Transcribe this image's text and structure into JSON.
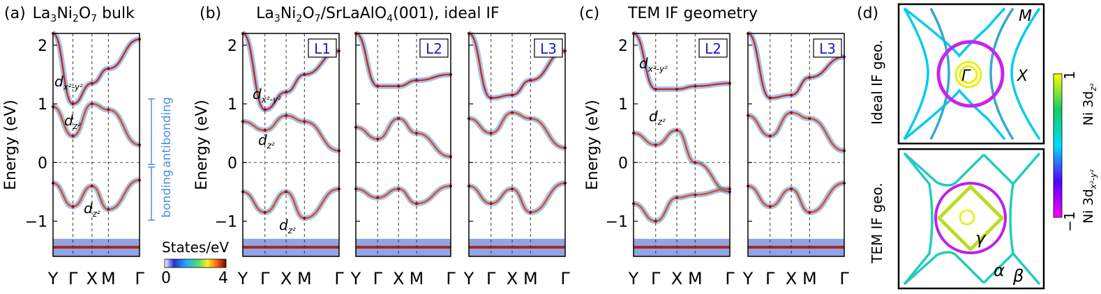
{
  "colors": {
    "blue_label": "#1a1acc",
    "annotation_blue": "#4a90e2",
    "colormap_states": [
      "#ffffff",
      "#2233cc",
      "#22aaff",
      "#55dd66",
      "#ffee22",
      "#ff6611",
      "#aa0000",
      "#7a0000"
    ],
    "colormap_orbital": [
      "#ff00ff",
      "#5500ff",
      "#00ddff",
      "#11cc66",
      "#ffff00"
    ]
  },
  "panels": {
    "a": {
      "letter": "(a)",
      "title_pre": "La",
      "title_s1": "3",
      "title_mid": "Ni",
      "title_s2": "2",
      "title_mid2": "O",
      "title_s3": "7",
      "title_post": " bulk"
    },
    "b": {
      "letter": "(b)",
      "title_pre": "La",
      "title_s1": "3",
      "title_mid": "Ni",
      "title_s2": "2",
      "title_mid2": "O",
      "title_s3": "7",
      "title_mid3": "/SrLaAlO",
      "title_s4": "4",
      "title_post": "(001), ideal IF",
      "layers": [
        "L1",
        "L2",
        "L3"
      ]
    },
    "c": {
      "letter": "(c)",
      "title": "TEM IF geometry",
      "layers": [
        "L2",
        "L3"
      ]
    },
    "d": {
      "letter": "(d)",
      "row_labels": [
        "Ideal IF geo.",
        "TEM IF geo."
      ],
      "points": {
        "M": "M",
        "X": "X",
        "Gamma": "Γ"
      },
      "pockets": {
        "gamma": "γ",
        "alpha": "α",
        "beta": "β"
      },
      "colorbar": {
        "top": "1",
        "bottom": "−1",
        "label_top": "Ni 3d",
        "label_top_sub": "z²",
        "label_bottom": "Ni 3d",
        "label_bottom_sub": "x²-y²"
      }
    }
  },
  "annotations": {
    "dx2": "d",
    "dx2_sub": "x²-y²",
    "dz2": "d",
    "dz2_sub": "z²",
    "antibonding": "antibonding",
    "bonding": "bonding"
  },
  "states_colorbar": {
    "title": "States/eV",
    "min": "0",
    "max": "4"
  },
  "chart_data": {
    "type": "band-structure",
    "ylabel": "Energy (eV)",
    "ylim": [
      -1.6,
      2.2
    ],
    "yticks": [
      "2",
      "1",
      "0",
      "−1"
    ],
    "kpath": [
      "Y",
      "Γ",
      "X",
      "M",
      "Γ"
    ],
    "panels": [
      {
        "id": "a",
        "bands": [
          {
            "name": "dx2-y2",
            "y": [
              2.2,
              1.0,
              1.35,
              1.6,
              2.1
            ]
          },
          {
            "name": "dz2 antibonding",
            "y": [
              0.95,
              0.45,
              1.0,
              0.9,
              0.3
            ]
          },
          {
            "name": "dz2 bonding",
            "y": [
              -0.35,
              -0.75,
              -0.4,
              -0.8,
              -0.3
            ]
          }
        ]
      },
      {
        "id": "b-L1",
        "bands": [
          {
            "name": "dx2-y2",
            "y": [
              2.2,
              0.9,
              1.2,
              1.5,
              1.9
            ]
          },
          {
            "name": "dz2",
            "y": [
              0.7,
              0.55,
              0.8,
              0.7,
              0.2
            ]
          },
          {
            "name": "dz2 bonding",
            "y": [
              -0.5,
              -0.85,
              -0.5,
              -0.95,
              -0.45
            ]
          }
        ]
      },
      {
        "id": "b-L2",
        "bands": [
          {
            "name": "dx2-y2",
            "y": [
              2.2,
              1.3,
              1.3,
              1.4,
              1.5
            ]
          },
          {
            "name": "dz2",
            "y": [
              0.6,
              0.4,
              0.75,
              0.5,
              0.1
            ]
          },
          {
            "name": "dz2 bonding",
            "y": [
              -0.45,
              -0.6,
              -0.45,
              -0.7,
              -0.4
            ]
          }
        ]
      },
      {
        "id": "b-L3",
        "bands": [
          {
            "name": "dx2-y2",
            "y": [
              2.2,
              1.1,
              1.15,
              1.4,
              1.9
            ]
          },
          {
            "name": "dz2",
            "y": [
              0.75,
              0.5,
              0.85,
              0.75,
              0.25
            ]
          },
          {
            "name": "dz2 bonding",
            "y": [
              -0.4,
              -0.7,
              -0.45,
              -0.85,
              -0.35
            ]
          }
        ]
      },
      {
        "id": "c-L2",
        "bands": [
          {
            "name": "dx2-y2",
            "y": [
              2.2,
              1.25,
              1.25,
              1.3,
              1.35
            ]
          },
          {
            "name": "dz2",
            "y": [
              0.5,
              0.3,
              0.55,
              0.0,
              -0.5
            ]
          },
          {
            "name": "dz2 bonding",
            "y": [
              -0.7,
              -1.0,
              -0.6,
              -0.55,
              -0.45
            ]
          }
        ]
      },
      {
        "id": "c-L3",
        "bands": [
          {
            "name": "dx2-y2",
            "y": [
              2.2,
              1.1,
              1.15,
              1.45,
              1.8
            ]
          },
          {
            "name": "dz2",
            "y": [
              0.8,
              0.45,
              0.85,
              0.75,
              0.2
            ]
          },
          {
            "name": "dz2 bonding",
            "y": [
              -0.4,
              -0.75,
              -0.45,
              -0.85,
              -0.35
            ]
          }
        ]
      }
    ]
  }
}
